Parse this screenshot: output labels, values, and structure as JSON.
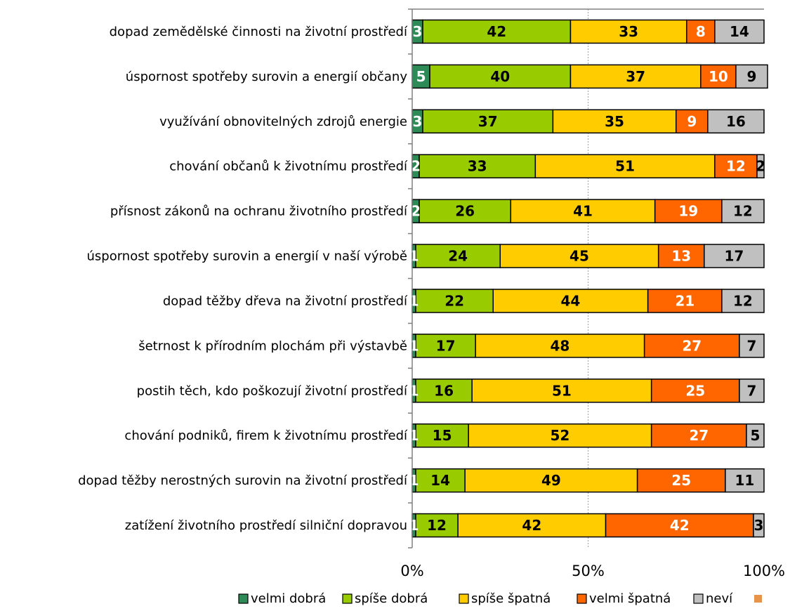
{
  "chart_data": {
    "type": "bar",
    "orientation": "horizontal",
    "stacked": "percent",
    "categories": [
      "dopad zemědělské činnosti na životní prostředí",
      "úspornost spotřeby surovin a energií občany",
      "využívání obnovitelných zdrojů energie",
      "chování občanů k životnímu prostředí",
      "přísnost zákonů na ochranu životního prostředí",
      "úspornost spotřeby surovin a energií v naší výrobě",
      "dopad těžby dřeva na životní prostředí",
      "šetrnost k přírodním plochám při výstavbě",
      "postih těch, kdo poškozují životní prostředí",
      "chování podniků, firem k životnímu prostředí",
      "dopad těžby nerostných surovin na životní prostředí",
      "zatížení životního prostředí silniční dopravou"
    ],
    "series": [
      {
        "name": "velmi dobrá",
        "color": "#2e8b57",
        "label_color": "#ffffff",
        "values": [
          3,
          5,
          3,
          2,
          2,
          1,
          1,
          1,
          1,
          1,
          1,
          1
        ]
      },
      {
        "name": "spíše dobrá",
        "color": "#99cc00",
        "label_color": "#000000",
        "values": [
          42,
          40,
          37,
          33,
          26,
          24,
          22,
          17,
          16,
          15,
          14,
          12
        ]
      },
      {
        "name": "spíše špatná",
        "color": "#ffcc00",
        "label_color": "#000000",
        "values": [
          33,
          37,
          35,
          51,
          41,
          45,
          44,
          48,
          51,
          52,
          49,
          42
        ]
      },
      {
        "name": "velmi špatná",
        "color": "#ff6600",
        "label_color": "#ffffff",
        "values": [
          8,
          10,
          9,
          12,
          19,
          13,
          21,
          27,
          25,
          27,
          25,
          42
        ]
      },
      {
        "name": "neví",
        "color": "#c0c0c0",
        "label_color": "#000000",
        "values": [
          14,
          9,
          16,
          2,
          12,
          17,
          12,
          7,
          7,
          5,
          11,
          3
        ]
      }
    ],
    "extra_legend_swatch_color": "#e6944a",
    "x_ticks": [
      "0%",
      "50%",
      "100%"
    ],
    "xlim": [
      0,
      100
    ],
    "grid": "vertical dotted at 50%",
    "legend": "bottom"
  }
}
